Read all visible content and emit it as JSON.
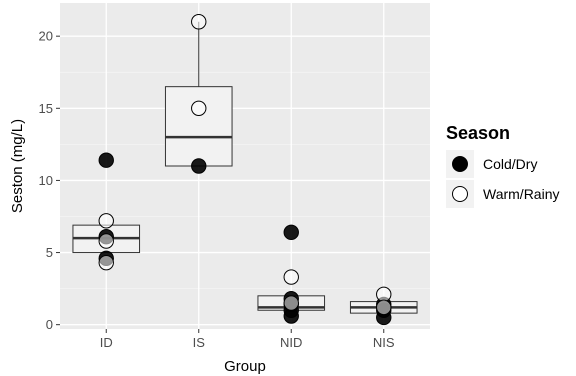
{
  "chart_data": {
    "type": "box",
    "xlabel": "Group",
    "ylabel": "Seston (mg/L)",
    "categories": [
      "ID",
      "IS",
      "NID",
      "NIS"
    ],
    "y_ticks": [
      0,
      5,
      10,
      15,
      20
    ],
    "ylim": [
      -0.3,
      22.3
    ],
    "grid": true,
    "legend": {
      "title": "Season",
      "position": "right",
      "entries": [
        {
          "label": "Cold/Dry",
          "marker": "filled-circle"
        },
        {
          "label": "Warm/Rainy",
          "marker": "open-circle"
        }
      ]
    },
    "boxes": [
      {
        "category": "ID",
        "q1": 5.0,
        "median": 6.0,
        "q3": 6.9,
        "whisker_low": 5.0,
        "whisker_high": 6.9
      },
      {
        "category": "IS",
        "q1": 11.0,
        "median": 13.0,
        "q3": 16.5,
        "whisker_low": 11.0,
        "whisker_high": 21.0
      },
      {
        "category": "NID",
        "q1": 1.0,
        "median": 1.2,
        "q3": 2.0,
        "whisker_low": 1.0,
        "whisker_high": 2.0
      },
      {
        "category": "NIS",
        "q1": 0.8,
        "median": 1.2,
        "q3": 1.6,
        "whisker_low": 0.8,
        "whisker_high": 1.6
      }
    ],
    "series": [
      {
        "name": "Cold/Dry",
        "points": [
          {
            "x": "ID",
            "y": 11.4
          },
          {
            "x": "ID",
            "y": 6.1
          },
          {
            "x": "ID",
            "y": 4.6
          },
          {
            "x": "IS",
            "y": 11.0
          },
          {
            "x": "NID",
            "y": 6.4
          },
          {
            "x": "NID",
            "y": 1.8
          },
          {
            "x": "NID",
            "y": 1.4
          },
          {
            "x": "NID",
            "y": 1.0
          },
          {
            "x": "NID",
            "y": 0.6
          },
          {
            "x": "NIS",
            "y": 1.4
          },
          {
            "x": "NIS",
            "y": 1.0
          },
          {
            "x": "NIS",
            "y": 0.5
          }
        ]
      },
      {
        "name": "Warm/Rainy",
        "points": [
          {
            "x": "ID",
            "y": 7.2
          },
          {
            "x": "ID",
            "y": 5.8
          },
          {
            "x": "ID",
            "y": 4.3
          },
          {
            "x": "IS",
            "y": 21.0
          },
          {
            "x": "IS",
            "y": 15.0
          },
          {
            "x": "NID",
            "y": 3.3
          },
          {
            "x": "NID",
            "y": 1.5
          },
          {
            "x": "NIS",
            "y": 2.1
          },
          {
            "x": "NIS",
            "y": 1.2
          }
        ]
      }
    ]
  }
}
